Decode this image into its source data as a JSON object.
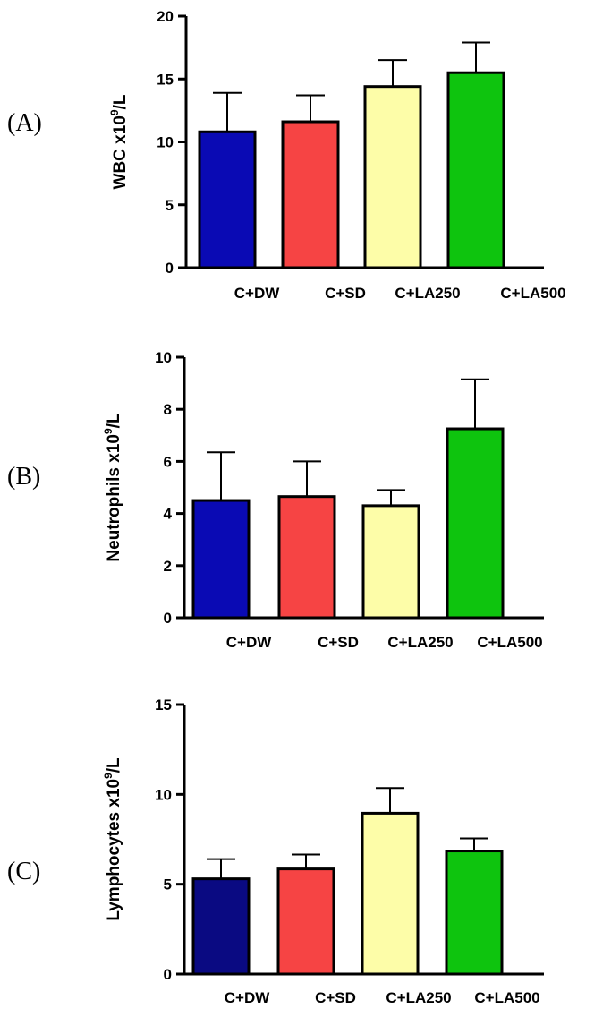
{
  "chart_data": [
    {
      "panel_label": "(A)",
      "type": "bar",
      "ylabel": {
        "prefix": "WBC x10",
        "sup": "9",
        "suffix": "/L"
      },
      "categories": [
        "C+DW",
        "C+SD",
        "C+LA250",
        "C+LA500"
      ],
      "values": [
        10.8,
        11.6,
        14.4,
        15.5
      ],
      "errors": [
        3.1,
        2.1,
        2.1,
        2.4
      ],
      "colors": [
        "#0a0ab4",
        "#f64444",
        "#fdfda8",
        "#0ec40e"
      ],
      "ylim": [
        0,
        20
      ],
      "yticks": [
        0,
        5,
        10,
        15,
        20
      ]
    },
    {
      "panel_label": "(B)",
      "type": "bar",
      "ylabel": {
        "prefix": "Neutrophils x10",
        "sup": "9",
        "suffix": "/L"
      },
      "categories": [
        "C+DW",
        "C+SD",
        "C+LA250",
        "C+LA500"
      ],
      "values": [
        4.5,
        4.65,
        4.3,
        7.25
      ],
      "errors": [
        1.85,
        1.35,
        0.6,
        1.9
      ],
      "colors": [
        "#0a0ab4",
        "#f64444",
        "#fdfda8",
        "#0ec40e"
      ],
      "ylim": [
        0,
        10
      ],
      "yticks": [
        0,
        2,
        4,
        6,
        8,
        10
      ]
    },
    {
      "panel_label": "(C)",
      "type": "bar",
      "ylabel": {
        "prefix": "Lymphocytes x10",
        "sup": "9",
        "suffix": "/L"
      },
      "categories": [
        "C+DW",
        "C+SD",
        "C+LA250",
        "C+LA500"
      ],
      "values": [
        5.3,
        5.85,
        8.95,
        6.85
      ],
      "errors": [
        1.1,
        0.8,
        1.4,
        0.7
      ],
      "colors": [
        "#0a0a82",
        "#f64444",
        "#fdfda8",
        "#0ec40e"
      ],
      "ylim": [
        0,
        15
      ],
      "yticks": [
        0,
        5,
        10,
        15
      ]
    }
  ]
}
